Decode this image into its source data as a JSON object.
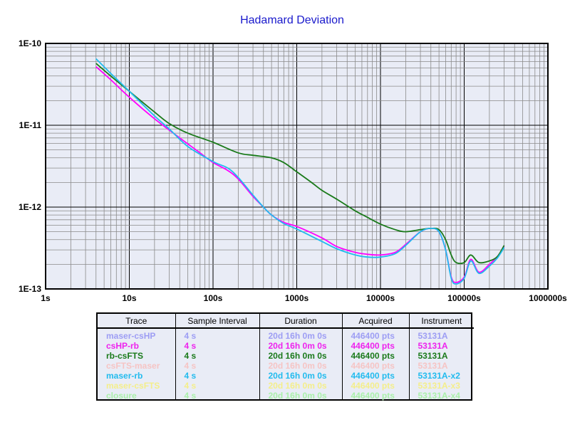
{
  "chart_data": {
    "type": "line",
    "title": "Hadamard Deviation",
    "x_scale": "log",
    "y_scale": "log",
    "xlim": [
      1,
      1000000
    ],
    "ylim": [
      1e-13,
      1e-10
    ],
    "x_tick_labels": [
      "1s",
      "10s",
      "100s",
      "1000s",
      "10000s",
      "100000s",
      "1000000s"
    ],
    "y_tick_labels": [
      "1E-10",
      "1E-11",
      "1E-12",
      "1E-13"
    ],
    "grid": true,
    "series": [
      {
        "name": "csHP-rb",
        "color": "#ff00ff",
        "x": [
          4,
          6,
          10,
          20,
          40,
          70,
          100,
          150,
          200,
          300,
          400,
          500,
          700,
          1000,
          2000,
          3000,
          5000,
          7000,
          10000,
          15000,
          20000,
          30000,
          40000,
          50000,
          60000,
          70000,
          80000,
          100000,
          120000,
          150000,
          200000,
          250000,
          300000
        ],
        "y": [
          5.2e-11,
          3.6e-11,
          2.2e-11,
          1.2e-11,
          7e-12,
          4.6e-12,
          3.5e-12,
          2.8e-12,
          2.2e-12,
          1.35e-12,
          1e-12,
          8e-13,
          6.5e-13,
          5.8e-13,
          4.2e-13,
          3.3e-13,
          2.8e-13,
          2.65e-13,
          2.6e-13,
          2.8e-13,
          3.5e-13,
          5e-13,
          5.5e-13,
          5e-13,
          3e-13,
          1.4e-13,
          1.2e-13,
          1.4e-13,
          2.3e-13,
          1.6e-13,
          2e-13,
          2.5e-13,
          3.3e-13
        ]
      },
      {
        "name": "rb-csFTS",
        "color": "#1a7a1a",
        "x": [
          4,
          6,
          10,
          20,
          30,
          50,
          100,
          200,
          300,
          500,
          700,
          1000,
          1500,
          2000,
          3000,
          5000,
          7000,
          10000,
          15000,
          20000,
          30000,
          40000,
          50000,
          60000,
          70000,
          80000,
          100000,
          120000,
          150000,
          200000,
          250000,
          300000
        ],
        "y": [
          5.7e-11,
          4e-11,
          2.6e-11,
          1.45e-11,
          1.05e-11,
          8e-12,
          6.2e-12,
          4.6e-12,
          4.3e-12,
          4e-12,
          3.5e-12,
          2.7e-12,
          2e-12,
          1.6e-12,
          1.25e-12,
          9e-13,
          7.5e-13,
          6.2e-13,
          5.3e-13,
          5e-13,
          5.3e-13,
          5.5e-13,
          5.3e-13,
          4e-13,
          2.6e-13,
          2.1e-13,
          2.1e-13,
          2.6e-13,
          2.1e-13,
          2.2e-13,
          2.5e-13,
          3.4e-13
        ]
      },
      {
        "name": "maser-rb",
        "color": "#22bbee",
        "x": [
          4,
          6,
          10,
          20,
          30,
          50,
          100,
          150,
          200,
          300,
          400,
          500,
          700,
          1000,
          2000,
          3000,
          5000,
          7000,
          10000,
          15000,
          20000,
          30000,
          40000,
          50000,
          60000,
          70000,
          80000,
          100000,
          120000,
          150000,
          200000,
          250000,
          300000
        ],
        "y": [
          6.5e-11,
          4.3e-11,
          2.6e-11,
          1.3e-11,
          9e-12,
          5.5e-12,
          3.6e-12,
          3e-12,
          2.3e-12,
          1.4e-12,
          1e-12,
          8e-13,
          6.3e-13,
          5.4e-13,
          3.8e-13,
          3.1e-13,
          2.6e-13,
          2.45e-13,
          2.45e-13,
          2.7e-13,
          3.4e-13,
          5e-13,
          5.5e-13,
          5e-13,
          3e-13,
          1.35e-13,
          1.15e-13,
          1.35e-13,
          2.2e-13,
          1.55e-13,
          1.9e-13,
          2.4e-13,
          3.2e-13
        ]
      }
    ]
  },
  "legend": {
    "headers": [
      "Trace",
      "Sample Interval",
      "Duration",
      "Acquired",
      "Instrument"
    ],
    "rows": [
      {
        "trace": "maser-csHP",
        "interval": "4 s",
        "duration": "20d 16h 0m 0s",
        "acquired": "446400 pts",
        "instrument": "53131A",
        "color": "#9d9df4"
      },
      {
        "trace": "csHP-rb",
        "interval": "4 s",
        "duration": "20d 16h 0m 0s",
        "acquired": "446400 pts",
        "instrument": "53131A",
        "color": "#ee22ee"
      },
      {
        "trace": "rb-csFTS",
        "interval": "4 s",
        "duration": "20d 16h 0m 0s",
        "acquired": "446400 pts",
        "instrument": "53131A",
        "color": "#1a7a1a"
      },
      {
        "trace": "csFTS-maser",
        "interval": "4 s",
        "duration": "20d 16h 0m 0s",
        "acquired": "446400 pts",
        "instrument": "53131A",
        "color": "#f6c4c4"
      },
      {
        "trace": "maser-rb",
        "interval": "4 s",
        "duration": "20d 16h 0m 0s",
        "acquired": "446400 pts",
        "instrument": "53131A-x2",
        "color": "#22bbee"
      },
      {
        "trace": "maser-csFTS",
        "interval": "4 s",
        "duration": "20d 16h 0m 0s",
        "acquired": "446400 pts",
        "instrument": "53131A-x3",
        "color": "#f4ee8a"
      },
      {
        "trace": "closure",
        "interval": "4 s",
        "duration": "20d 16h 0m 0s",
        "acquired": "446400 pts",
        "instrument": "53131A-x4",
        "color": "#aaf0aa"
      }
    ]
  }
}
